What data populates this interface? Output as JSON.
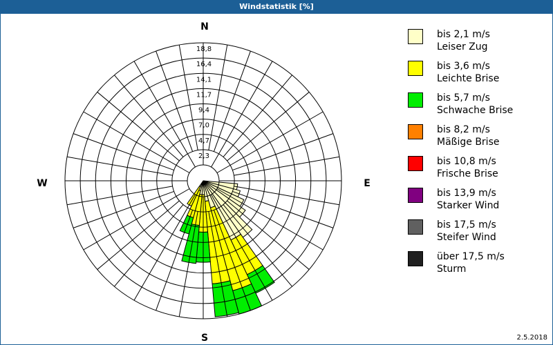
{
  "title": "Windstatistik [%]",
  "compass": {
    "n": "N",
    "e": "E",
    "s": "S",
    "w": "W"
  },
  "date": "2.5.2018",
  "legend": [
    {
      "speed": "bis 2,1 m/s",
      "name": "Leiser Zug",
      "color": "#ffffc8"
    },
    {
      "speed": "bis 3,6 m/s",
      "name": "Leichte Brise",
      "color": "#ffff00"
    },
    {
      "speed": "bis 5,7 m/s",
      "name": "Schwache Brise",
      "color": "#00ee00"
    },
    {
      "speed": "bis 8,2 m/s",
      "name": "Mäßige Brise",
      "color": "#ff8000"
    },
    {
      "speed": "bis 10,8 m/s",
      "name": "Frische Brise",
      "color": "#ff0000"
    },
    {
      "speed": "bis 13,9 m/s",
      "name": "Starker Wind",
      "color": "#800080"
    },
    {
      "speed": "bis 17,5 m/s",
      "name": "Steifer Wind",
      "color": "#606060"
    },
    {
      "speed": "über 17,5 m/s",
      "name": "Sturm",
      "color": "#202020"
    }
  ],
  "chart_data": {
    "type": "wind-rose",
    "title": "Windstatistik [%]",
    "radial_ticks": [
      "2,3",
      "4,7",
      "7,0",
      "9,4",
      "11,7",
      "14,1",
      "16,4",
      "18,8"
    ],
    "radial_max": 18.8,
    "sector_width_deg": 10,
    "series_names": [
      "bis 2,1 m/s",
      "bis 3,6 m/s",
      "bis 5,7 m/s",
      "bis 8,2 m/s",
      "bis 10,8 m/s",
      "bis 13,9 m/s",
      "bis 17,5 m/s",
      "über 17,5 m/s"
    ],
    "sectors": [
      {
        "dir": 100,
        "cumulative": [
          4.7,
          4.7,
          4.7
        ]
      },
      {
        "dir": 110,
        "cumulative": [
          5.2,
          5.2,
          5.2
        ]
      },
      {
        "dir": 120,
        "cumulative": [
          6.1,
          6.1,
          6.1
        ]
      },
      {
        "dir": 130,
        "cumulative": [
          7.0,
          7.0,
          7.0
        ]
      },
      {
        "dir": 140,
        "cumulative": [
          9.4,
          9.4,
          9.4
        ]
      },
      {
        "dir": 150,
        "cumulative": [
          8.9,
          14.1,
          16.9
        ]
      },
      {
        "dir": 160,
        "cumulative": [
          3.8,
          15.5,
          18.8
        ]
      },
      {
        "dir": 170,
        "cumulative": [
          2.8,
          14.1,
          18.6
        ]
      },
      {
        "dir": 180,
        "cumulative": [
          1.9,
          7.0,
          11.1
        ]
      },
      {
        "dir": 190,
        "cumulative": [
          1.9,
          6.1,
          11.3
        ]
      },
      {
        "dir": 200,
        "cumulative": [
          1.4,
          5.2,
          7.5
        ]
      },
      {
        "dir": 210,
        "cumulative": [
          0.9,
          3.8,
          3.8
        ]
      }
    ]
  }
}
